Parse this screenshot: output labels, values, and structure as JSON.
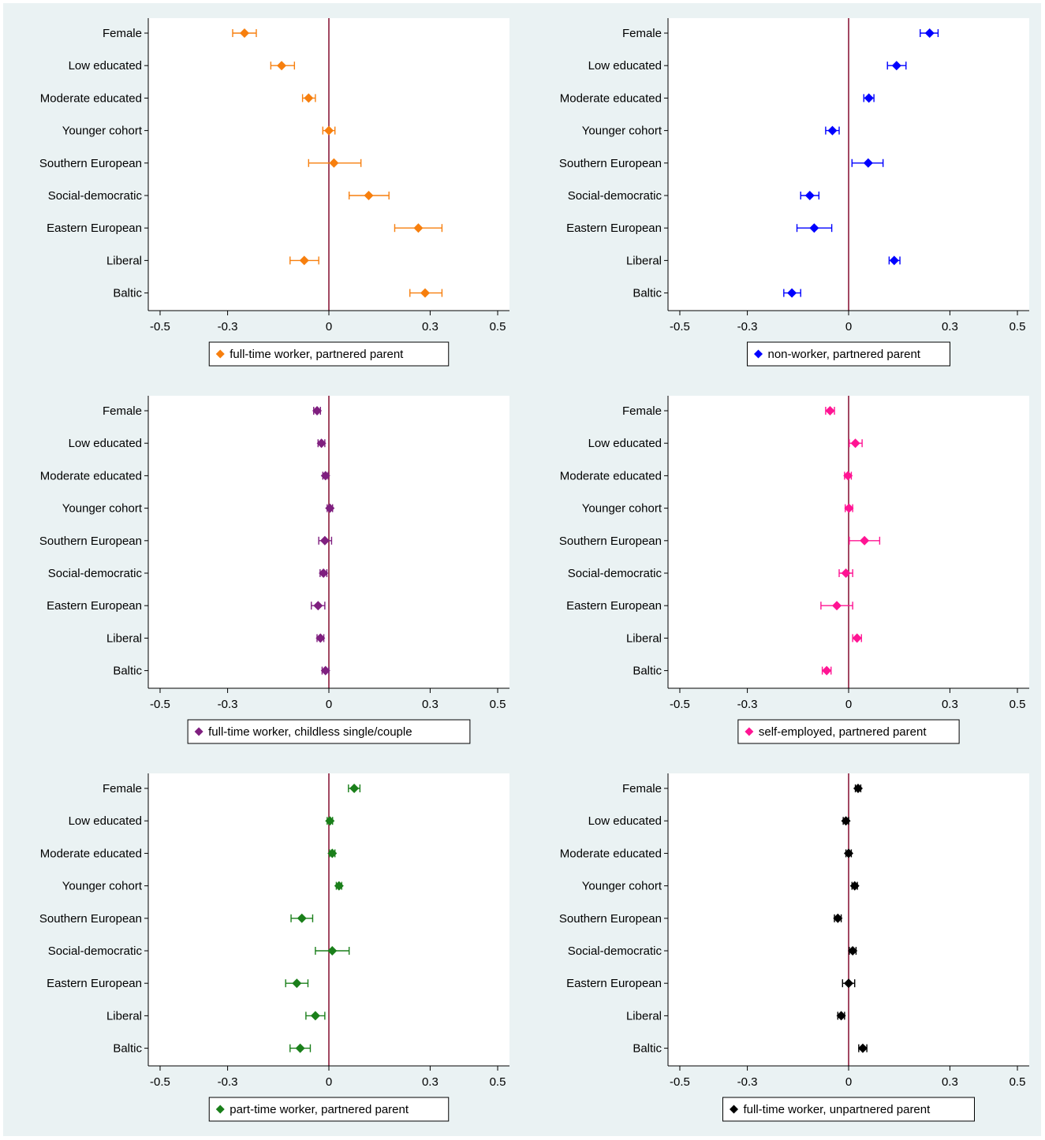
{
  "chart_data": [
    {
      "type": "scatter",
      "subtype": "coefficient-plot",
      "legend": "full-time worker, partnered parent",
      "color": "#f77f0e",
      "categories": [
        "Female",
        "Low educated",
        "Moderate educated",
        "Younger cohort",
        "Southern European",
        "Social-democratic",
        "Eastern European",
        "Liberal",
        "Baltic"
      ],
      "values": [
        -0.25,
        -0.14,
        -0.06,
        0.0,
        0.015,
        0.118,
        0.265,
        -0.073,
        0.285
      ],
      "ci_low": [
        -0.285,
        -0.172,
        -0.078,
        -0.018,
        -0.06,
        0.06,
        0.195,
        -0.115,
        0.24
      ],
      "ci_high": [
        -0.215,
        -0.102,
        -0.04,
        0.018,
        0.095,
        0.178,
        0.335,
        -0.03,
        0.335
      ],
      "xticks": [
        -0.5,
        -0.3,
        0,
        0.3,
        0.5
      ],
      "xtick_labels": [
        "-0.5",
        "-0.3",
        "0",
        "0.3",
        "0.5"
      ],
      "xlim": [
        -0.535,
        0.535
      ],
      "reference_line": 0
    },
    {
      "type": "scatter",
      "subtype": "coefficient-plot",
      "legend": "non-worker, partnered parent",
      "color": "#0000ff",
      "categories": [
        "Female",
        "Low educated",
        "Moderate educated",
        "Younger cohort",
        "Southern European",
        "Social-democratic",
        "Eastern European",
        "Liberal",
        "Baltic"
      ],
      "values": [
        0.24,
        0.142,
        0.06,
        -0.048,
        0.058,
        -0.115,
        -0.102,
        0.135,
        -0.168
      ],
      "ci_low": [
        0.212,
        0.115,
        0.045,
        -0.068,
        0.01,
        -0.142,
        -0.153,
        0.12,
        -0.192
      ],
      "ci_high": [
        0.265,
        0.17,
        0.075,
        -0.028,
        0.102,
        -0.088,
        -0.05,
        0.152,
        -0.142
      ],
      "xticks": [
        -0.5,
        -0.3,
        0,
        0.3,
        0.5
      ],
      "xtick_labels": [
        "-0.5",
        "-0.3",
        "0",
        "0.3",
        "0.5"
      ],
      "xlim": [
        -0.535,
        0.535
      ],
      "reference_line": 0
    },
    {
      "type": "scatter",
      "subtype": "coefficient-plot",
      "legend": "full-time worker, childless single/couple",
      "color": "#7f1f7f",
      "categories": [
        "Female",
        "Low educated",
        "Moderate educated",
        "Younger cohort",
        "Southern European",
        "Social-democratic",
        "Eastern European",
        "Liberal",
        "Baltic"
      ],
      "values": [
        -0.035,
        -0.022,
        -0.01,
        0.003,
        -0.012,
        -0.016,
        -0.032,
        -0.025,
        -0.01
      ],
      "ci_low": [
        -0.045,
        -0.032,
        -0.018,
        -0.005,
        -0.03,
        -0.026,
        -0.052,
        -0.035,
        -0.02
      ],
      "ci_high": [
        -0.025,
        -0.012,
        -0.002,
        0.011,
        0.008,
        -0.006,
        -0.012,
        -0.015,
        0.0
      ],
      "xticks": [
        -0.5,
        -0.3,
        0,
        0.3,
        0.5
      ],
      "xtick_labels": [
        "-0.5",
        "-0.3",
        "0",
        "0.3",
        "0.5"
      ],
      "xlim": [
        -0.535,
        0.535
      ],
      "reference_line": 0
    },
    {
      "type": "scatter",
      "subtype": "coefficient-plot",
      "legend": "self-employed, partnered parent",
      "color": "#ff1493",
      "categories": [
        "Female",
        "Low educated",
        "Moderate educated",
        "Younger cohort",
        "Southern European",
        "Social-democratic",
        "Eastern European",
        "Liberal",
        "Baltic"
      ],
      "values": [
        -0.055,
        0.02,
        -0.002,
        0.001,
        0.047,
        -0.008,
        -0.035,
        0.025,
        -0.065
      ],
      "ci_low": [
        -0.068,
        0.002,
        -0.012,
        -0.01,
        0.002,
        -0.028,
        -0.082,
        0.012,
        -0.078
      ],
      "ci_high": [
        -0.042,
        0.04,
        0.008,
        0.012,
        0.092,
        0.012,
        0.012,
        0.038,
        -0.052
      ],
      "xticks": [
        -0.5,
        -0.3,
        0,
        0.3,
        0.5
      ],
      "xtick_labels": [
        "-0.5",
        "-0.3",
        "0",
        "0.3",
        "0.5"
      ],
      "xlim": [
        -0.535,
        0.535
      ],
      "reference_line": 0
    },
    {
      "type": "scatter",
      "subtype": "coefficient-plot",
      "legend": "part-time worker, partnered parent",
      "color": "#1a7f1a",
      "categories": [
        "Female",
        "Low educated",
        "Moderate educated",
        "Younger cohort",
        "Southern European",
        "Social-democratic",
        "Eastern European",
        "Liberal",
        "Baltic"
      ],
      "values": [
        0.075,
        0.003,
        0.01,
        0.03,
        -0.08,
        0.01,
        -0.095,
        -0.04,
        -0.085
      ],
      "ci_low": [
        0.058,
        -0.005,
        0.002,
        0.022,
        -0.112,
        -0.04,
        -0.128,
        -0.068,
        -0.115
      ],
      "ci_high": [
        0.092,
        0.011,
        0.018,
        0.038,
        -0.048,
        0.06,
        -0.062,
        -0.012,
        -0.055
      ],
      "xticks": [
        -0.5,
        -0.3,
        0,
        0.3,
        0.5
      ],
      "xtick_labels": [
        "-0.5",
        "-0.3",
        "0",
        "0.3",
        "0.5"
      ],
      "xlim": [
        -0.535,
        0.535
      ],
      "reference_line": 0
    },
    {
      "type": "scatter",
      "subtype": "coefficient-plot",
      "legend": "full-time worker, unpartnered parent",
      "color": "#000000",
      "categories": [
        "Female",
        "Low educated",
        "Moderate educated",
        "Younger cohort",
        "Southern European",
        "Social-democratic",
        "Eastern European",
        "Liberal",
        "Baltic"
      ],
      "values": [
        0.028,
        -0.008,
        0.0,
        0.018,
        -0.032,
        0.012,
        0.0,
        -0.022,
        0.042
      ],
      "ci_low": [
        0.02,
        -0.016,
        -0.008,
        0.01,
        -0.042,
        0.002,
        -0.018,
        -0.032,
        0.03
      ],
      "ci_high": [
        0.036,
        0.0,
        0.008,
        0.026,
        -0.022,
        0.022,
        0.018,
        -0.012,
        0.054
      ],
      "xticks": [
        -0.5,
        -0.3,
        0,
        0.3,
        0.5
      ],
      "xtick_labels": [
        "-0.5",
        "-0.3",
        "0",
        "0.3",
        "0.5"
      ],
      "xlim": [
        -0.535,
        0.535
      ],
      "reference_line": 0
    }
  ],
  "colors": {
    "background": "#eaf2f3",
    "plot_area": "#ffffff",
    "reference_line": "#8b1a3a",
    "axis": "#000000"
  }
}
